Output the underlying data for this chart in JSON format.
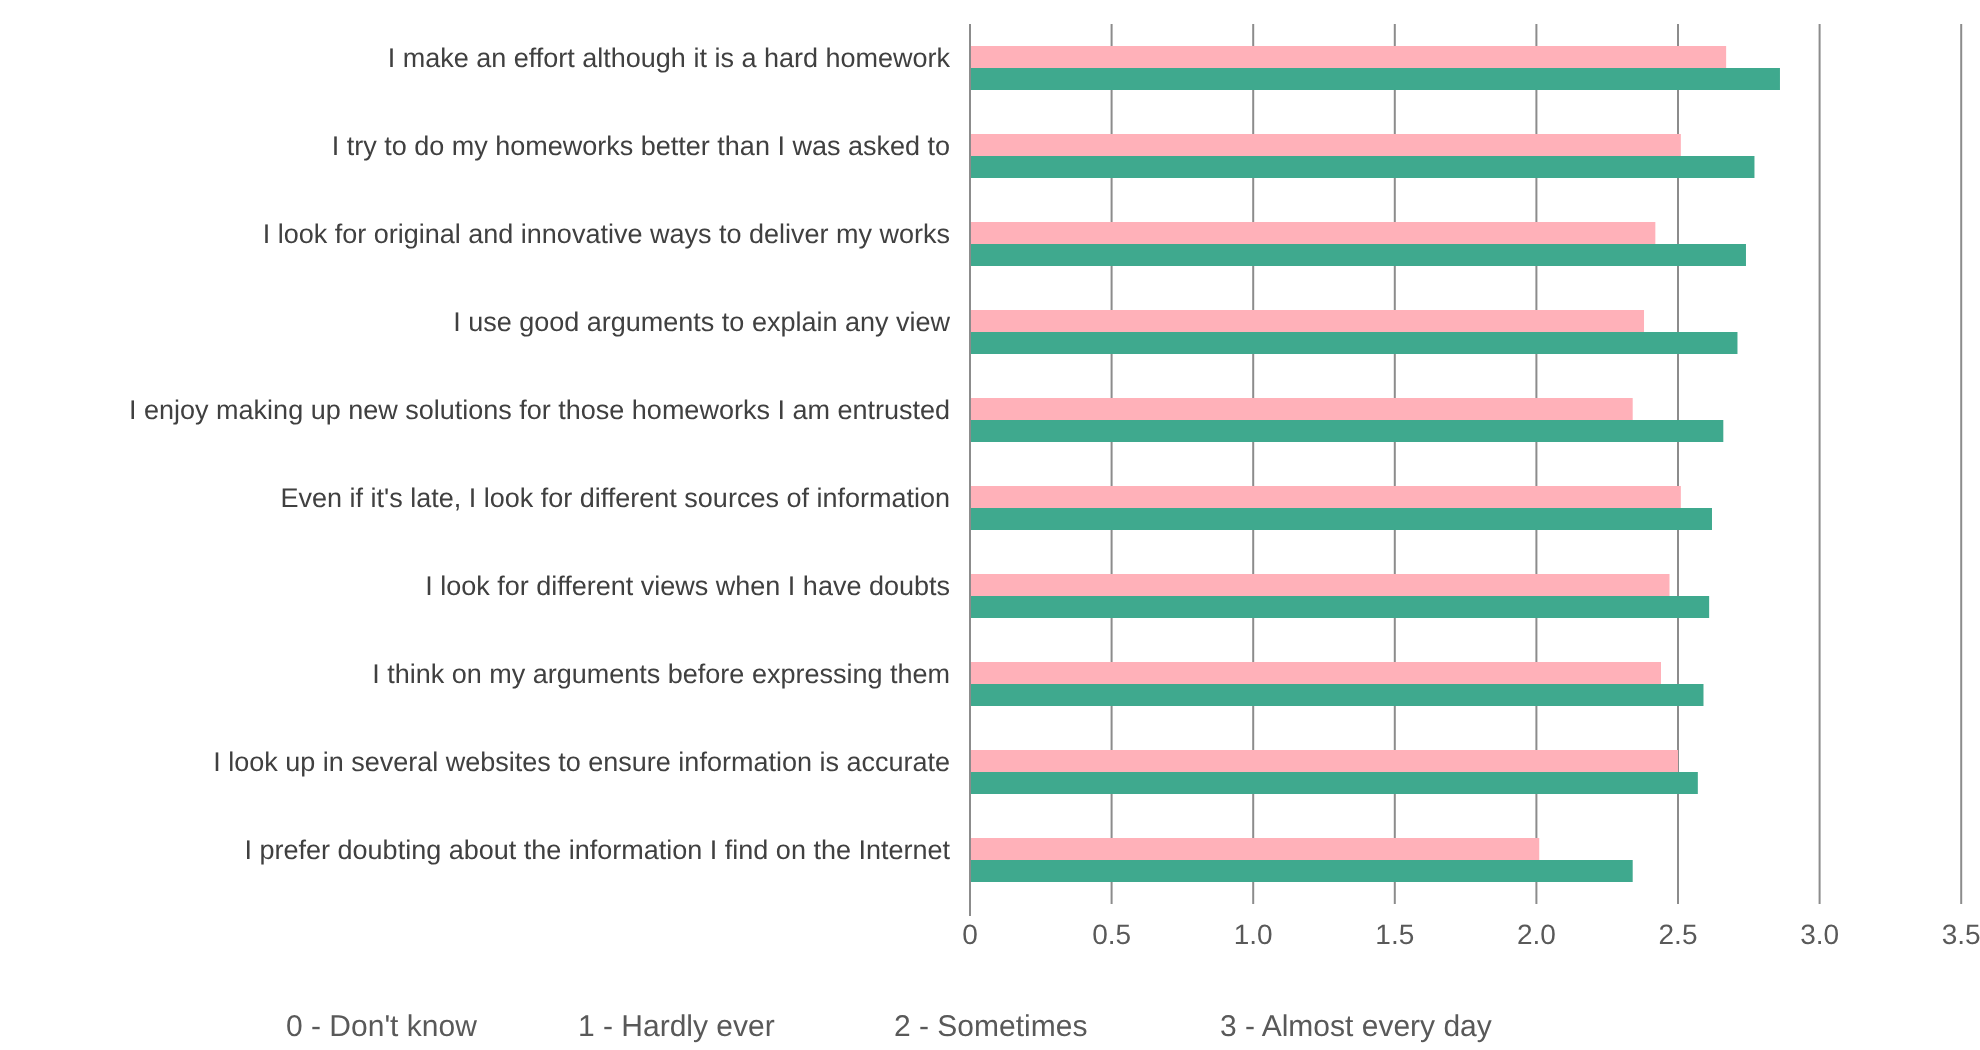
{
  "chart_data": {
    "type": "bar",
    "orientation": "horizontal",
    "categories": [
      "I make an effort although it is a hard homework",
      "I try to do my homeworks better than I was asked to",
      "I look for original and innovative ways to deliver my works",
      "I use good arguments to explain any view",
      "I enjoy making up new solutions for those homeworks I am entrusted",
      "Even if it's late, I look for different sources of information",
      "I look for different views when I have doubts",
      "I think on my arguments before expressing them",
      "I look up in several websites to ensure information is accurate",
      "I prefer doubting about the information I find on the Internet"
    ],
    "series": [
      {
        "color": "#ffb1b9",
        "values": [
          2.67,
          2.51,
          2.42,
          2.38,
          2.34,
          2.51,
          2.47,
          2.44,
          2.5,
          2.01
        ]
      },
      {
        "color": "#3fa98e",
        "values": [
          2.86,
          2.77,
          2.74,
          2.71,
          2.66,
          2.62,
          2.61,
          2.59,
          2.57,
          2.34
        ]
      }
    ],
    "xlim": [
      0,
      3.5
    ],
    "xticks": [
      0,
      0.5,
      {
        "value": 1,
        "label": "1.0"
      },
      1.5,
      {
        "value": 2,
        "label": "2.0"
      },
      2.5,
      {
        "value": 3,
        "label": "3.0"
      },
      3.5
    ],
    "grid": "x",
    "annotations": [
      "0 - Don't know",
      "1 - Hardly ever",
      "2 - Sometimes",
      "3 - Almost every day"
    ]
  }
}
